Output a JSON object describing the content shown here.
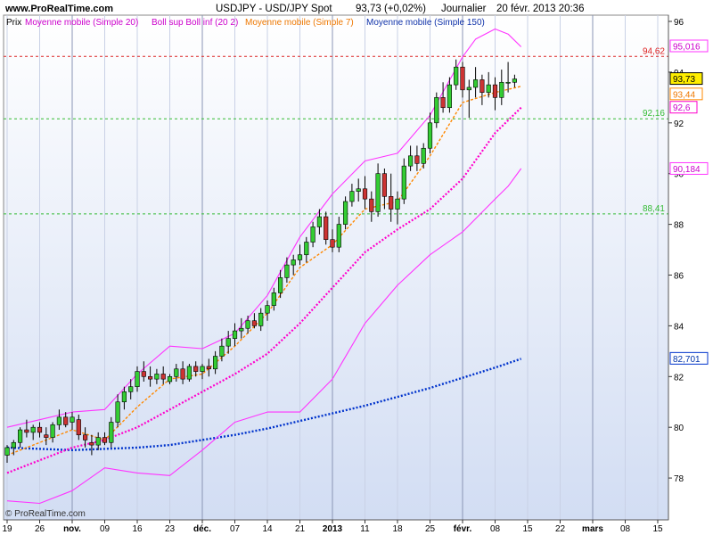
{
  "header": {
    "site": "www.ProRealTime.com",
    "instrument": "USDJPY - USD/JPY Spot",
    "quote": "93,73 (+0,02%)",
    "period": "Journalier",
    "datetime": "20 févr. 2013 20:36"
  },
  "legend": {
    "price": "Prix",
    "ma20": "Moyenne mobile (Simple 20)",
    "boll": "Boll sup Boll inf (20 2)",
    "ma7": "Moyenne mobile (Simple 7)",
    "ma150": "Moyenne mobile (Simple 150)"
  },
  "copyright": "© ProRealTime.com",
  "colors": {
    "up": "#33cc33",
    "down": "#cc3333",
    "ma20": "#ff00cc",
    "boll": "#ff33ff",
    "ma7": "#ff8800",
    "ma150": "#0033cc",
    "resistance": "#dd2222",
    "support": "#33bb33"
  },
  "chart_data": {
    "type": "candlestick",
    "ylim": [
      76.5,
      96.5
    ],
    "y_ticks": [
      78,
      80,
      82,
      84,
      86,
      88,
      90,
      92,
      94,
      96
    ],
    "x_labels": [
      "19",
      "26",
      "nov.",
      "09",
      "16",
      "23",
      "déc.",
      "07",
      "14",
      "21",
      "2013",
      "11",
      "18",
      "25",
      "févr.",
      "08",
      "15",
      "22",
      "mars",
      "08",
      "15"
    ],
    "x_labels_bold": [
      "nov.",
      "déc.",
      "2013",
      "févr.",
      "mars"
    ],
    "month_lines": [
      5,
      23,
      43,
      61,
      79
    ],
    "grid": true,
    "hlines": [
      {
        "value": 94.62,
        "label": "94,62",
        "kind": "resistance"
      },
      {
        "value": 92.16,
        "label": "92,16",
        "kind": "support"
      },
      {
        "value": 88.41,
        "label": "88,41",
        "kind": "support"
      }
    ],
    "value_tags": [
      {
        "value": 95.016,
        "label": "95,016",
        "series": "boll_up"
      },
      {
        "value": 93.73,
        "label": "93,73",
        "series": "price"
      },
      {
        "value": 93.44,
        "label": "93,44",
        "series": "ma7"
      },
      {
        "value": 92.6,
        "label": "92,6",
        "series": "ma20"
      },
      {
        "value": 90.184,
        "label": "90,184",
        "series": "boll_low"
      },
      {
        "value": 82.701,
        "label": "82,701",
        "series": "ma150"
      }
    ],
    "ohlc": [
      [
        78.9,
        79.3,
        78.6,
        79.2
      ],
      [
        79.2,
        79.5,
        78.9,
        79.4
      ],
      [
        79.4,
        80.0,
        79.2,
        79.9
      ],
      [
        79.9,
        80.3,
        79.6,
        79.8
      ],
      [
        79.8,
        80.1,
        79.5,
        80.0
      ],
      [
        80.0,
        80.2,
        79.6,
        79.8
      ],
      [
        79.7,
        80.0,
        79.3,
        79.6
      ],
      [
        79.6,
        80.2,
        79.4,
        80.1
      ],
      [
        80.1,
        80.7,
        79.9,
        80.4
      ],
      [
        80.4,
        80.6,
        80.0,
        80.1
      ],
      [
        80.2,
        80.6,
        79.9,
        80.4
      ],
      [
        80.3,
        80.5,
        79.5,
        79.7
      ],
      [
        79.7,
        80.0,
        79.2,
        79.5
      ],
      [
        79.4,
        79.7,
        78.9,
        79.3
      ],
      [
        79.3,
        79.8,
        79.1,
        79.6
      ],
      [
        79.6,
        79.8,
        79.3,
        79.4
      ],
      [
        79.4,
        80.4,
        79.2,
        80.2
      ],
      [
        80.2,
        81.3,
        80.0,
        81.0
      ],
      [
        81.0,
        81.6,
        80.7,
        81.4
      ],
      [
        81.4,
        81.9,
        81.1,
        81.6
      ],
      [
        81.6,
        82.4,
        81.4,
        82.2
      ],
      [
        82.2,
        82.6,
        81.8,
        82.0
      ],
      [
        82.0,
        82.4,
        81.6,
        81.9
      ],
      [
        81.9,
        82.3,
        81.7,
        82.1
      ],
      [
        82.1,
        82.4,
        81.7,
        81.9
      ],
      [
        81.8,
        82.1,
        81.7,
        82.0
      ],
      [
        82.0,
        82.5,
        81.8,
        82.3
      ],
      [
        82.3,
        82.6,
        81.7,
        81.9
      ],
      [
        81.9,
        82.5,
        81.8,
        82.4
      ],
      [
        82.4,
        82.6,
        82.0,
        82.2
      ],
      [
        82.2,
        82.5,
        81.9,
        82.4
      ],
      [
        82.4,
        82.7,
        82.0,
        82.3
      ],
      [
        82.3,
        83.0,
        82.1,
        82.8
      ],
      [
        82.8,
        83.5,
        82.6,
        83.2
      ],
      [
        83.2,
        83.8,
        82.9,
        83.5
      ],
      [
        83.5,
        84.1,
        83.2,
        83.8
      ],
      [
        83.8,
        84.3,
        83.5,
        83.9
      ],
      [
        83.9,
        84.4,
        83.7,
        84.2
      ],
      [
        84.2,
        84.5,
        83.9,
        84.0
      ],
      [
        84.0,
        84.7,
        83.8,
        84.5
      ],
      [
        84.5,
        85.0,
        84.2,
        84.8
      ],
      [
        84.8,
        85.5,
        84.6,
        85.3
      ],
      [
        85.3,
        86.2,
        85.1,
        85.9
      ],
      [
        85.9,
        86.7,
        85.7,
        86.4
      ],
      [
        86.4,
        86.8,
        86.0,
        86.6
      ],
      [
        86.6,
        87.2,
        86.4,
        86.8
      ],
      [
        86.8,
        87.5,
        86.5,
        87.3
      ],
      [
        87.3,
        88.1,
        87.1,
        87.9
      ],
      [
        87.9,
        88.6,
        87.6,
        88.3
      ],
      [
        88.3,
        88.5,
        87.2,
        87.4
      ],
      [
        87.4,
        87.8,
        86.9,
        87.1
      ],
      [
        87.1,
        88.3,
        86.9,
        88.0
      ],
      [
        88.0,
        89.1,
        87.8,
        88.9
      ],
      [
        88.9,
        89.6,
        88.7,
        89.3
      ],
      [
        89.3,
        89.8,
        88.9,
        89.4
      ],
      [
        89.4,
        89.9,
        88.6,
        89.0
      ],
      [
        89.0,
        89.3,
        88.1,
        88.5
      ],
      [
        88.5,
        90.4,
        88.3,
        90.0
      ],
      [
        90.0,
        90.2,
        88.6,
        89.1
      ],
      [
        89.1,
        90.0,
        88.1,
        88.6
      ],
      [
        88.6,
        89.3,
        88.0,
        89.0
      ],
      [
        89.0,
        90.6,
        88.8,
        90.3
      ],
      [
        90.3,
        91.1,
        90.1,
        90.7
      ],
      [
        90.7,
        91.1,
        90.1,
        90.4
      ],
      [
        90.4,
        91.2,
        90.2,
        91.0
      ],
      [
        91.0,
        92.4,
        90.8,
        92.0
      ],
      [
        92.0,
        93.2,
        91.8,
        93.0
      ],
      [
        93.0,
        93.6,
        92.4,
        92.6
      ],
      [
        92.6,
        93.8,
        92.4,
        93.5
      ],
      [
        93.5,
        94.5,
        93.3,
        94.2
      ],
      [
        94.2,
        94.4,
        93.0,
        93.3
      ],
      [
        93.3,
        93.7,
        92.2,
        93.4
      ],
      [
        93.4,
        94.2,
        93.0,
        93.7
      ],
      [
        93.7,
        93.9,
        92.7,
        93.2
      ],
      [
        93.2,
        94.0,
        93.0,
        93.5
      ],
      [
        93.5,
        93.8,
        92.5,
        93.0
      ],
      [
        93.0,
        94.1,
        92.7,
        93.6
      ],
      [
        93.6,
        94.4,
        93.2,
        93.6
      ],
      [
        93.6,
        93.9,
        93.4,
        93.73
      ]
    ],
    "series": [
      {
        "name": "Moyenne mobile (Simple 150)",
        "key": "ma150",
        "style": "dotted",
        "x": [
          0,
          5,
          10,
          15,
          20,
          25,
          30,
          35,
          40,
          45,
          50,
          55,
          60,
          65,
          70,
          75,
          79
        ],
        "y": [
          79.2,
          79.15,
          79.1,
          79.15,
          79.2,
          79.3,
          79.5,
          79.7,
          79.95,
          80.25,
          80.55,
          80.85,
          81.2,
          81.55,
          81.95,
          82.35,
          82.7
        ]
      },
      {
        "name": "Moyenne mobile (Simple 20)",
        "key": "ma20",
        "style": "dotted",
        "x": [
          0,
          5,
          10,
          15,
          20,
          25,
          30,
          35,
          40,
          45,
          50,
          55,
          60,
          65,
          70,
          75,
          79
        ],
        "y": [
          78.2,
          78.7,
          79.2,
          79.5,
          80.0,
          80.7,
          81.4,
          82.1,
          82.9,
          84.1,
          85.5,
          86.9,
          87.8,
          88.6,
          89.8,
          91.6,
          92.6
        ]
      },
      {
        "name": "Moyenne mobile (Simple 7)",
        "key": "ma7",
        "style": "dashed",
        "x": [
          0,
          5,
          10,
          15,
          20,
          25,
          30,
          35,
          40,
          45,
          50,
          55,
          60,
          65,
          70,
          75,
          79
        ],
        "y": [
          78.9,
          79.4,
          79.9,
          79.5,
          80.8,
          81.9,
          82.1,
          83.2,
          84.5,
          86.3,
          87.2,
          88.6,
          88.9,
          90.7,
          92.8,
          93.2,
          93.44
        ]
      },
      {
        "name": "Boll sup",
        "key": "boll_up",
        "style": "solid",
        "x": [
          0,
          5,
          10,
          15,
          20,
          25,
          30,
          35,
          40,
          45,
          50,
          55,
          60,
          65,
          70,
          72,
          75,
          77,
          79
        ],
        "y": [
          80.0,
          80.3,
          80.6,
          80.7,
          82.1,
          83.2,
          83.1,
          83.7,
          85.2,
          87.5,
          89.2,
          90.5,
          90.8,
          92.3,
          94.6,
          95.3,
          95.7,
          95.5,
          95.0
        ]
      },
      {
        "name": "Boll inf",
        "key": "boll_low",
        "style": "solid",
        "x": [
          0,
          5,
          10,
          15,
          20,
          25,
          30,
          35,
          40,
          45,
          50,
          55,
          60,
          65,
          70,
          75,
          77,
          79
        ],
        "y": [
          77.1,
          77.0,
          77.5,
          78.4,
          78.2,
          78.1,
          79.1,
          80.2,
          80.6,
          80.6,
          81.9,
          84.1,
          85.6,
          86.8,
          87.7,
          89.0,
          89.5,
          90.2
        ]
      }
    ]
  }
}
